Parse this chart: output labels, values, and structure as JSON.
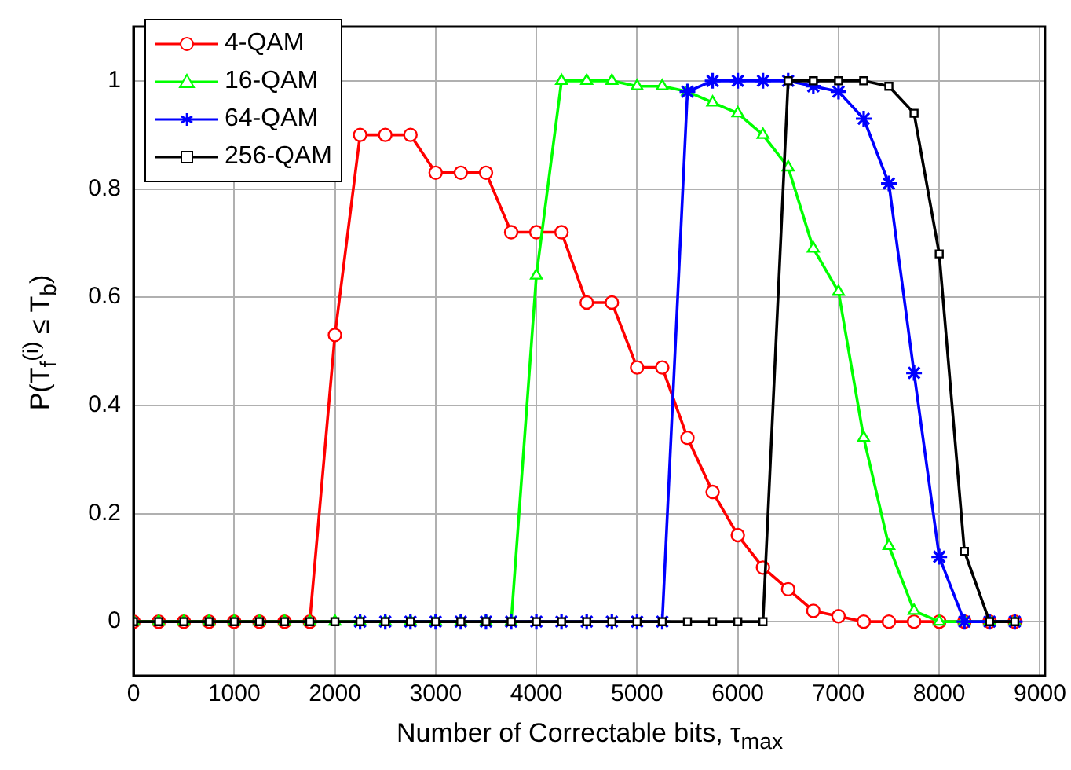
{
  "chart_data": {
    "type": "line",
    "xlabel": "Number of Correctable bits, τ$_{max}$",
    "ylabel": "P(T$_{f}$$^{(i)}$ ≤ T$_{b}$)",
    "x": [
      0,
      250,
      500,
      750,
      1000,
      1250,
      1500,
      1750,
      2000,
      2250,
      2500,
      2750,
      3000,
      3250,
      3500,
      3750,
      4000,
      4250,
      4500,
      4750,
      5000,
      5250,
      5500,
      5750,
      6000,
      6250,
      6500,
      6750,
      7000,
      7250,
      7500,
      7750,
      8000,
      8250,
      8500,
      8750
    ],
    "xlim": [
      0,
      9050
    ],
    "xticks": [
      0,
      1000,
      2000,
      3000,
      4000,
      5000,
      6000,
      7000,
      8000,
      9000
    ],
    "ylim": [
      -0.1,
      1.1
    ],
    "yticks": [
      0,
      0.2,
      0.4,
      0.6,
      0.8,
      1
    ],
    "grid": true,
    "legend": "top left",
    "line_style": "solid",
    "series": [
      {
        "name": "4-QAM",
        "color": "#ff0000",
        "marker": "circle",
        "values": [
          0,
          0,
          0,
          0,
          0,
          0,
          0,
          0,
          0.53,
          0.9,
          0.9,
          0.9,
          0.83,
          0.83,
          0.83,
          0.72,
          0.72,
          0.72,
          0.59,
          0.59,
          0.47,
          0.47,
          0.34,
          0.24,
          0.16,
          0.1,
          0.06,
          0.02,
          0.01,
          0,
          0,
          0,
          0,
          0,
          0,
          0
        ]
      },
      {
        "name": "16-QAM",
        "color": "#00ff00",
        "marker": "triangle",
        "values": [
          0,
          0,
          0,
          0,
          0,
          0,
          0,
          0,
          0,
          0,
          0,
          0,
          0,
          0,
          0,
          0,
          0.64,
          1,
          1,
          1,
          0.99,
          0.99,
          0.98,
          0.96,
          0.94,
          0.9,
          0.84,
          0.69,
          0.61,
          0.34,
          0.14,
          0.02,
          0,
          0,
          0,
          0
        ]
      },
      {
        "name": "64-QAM",
        "color": "#0000ff",
        "marker": "cross",
        "values": [
          null,
          null,
          null,
          null,
          null,
          null,
          null,
          null,
          null,
          0,
          0,
          0,
          0,
          0,
          0,
          0,
          0,
          0,
          0,
          0,
          0,
          0,
          0.98,
          1,
          1,
          1,
          1,
          0.99,
          0.98,
          0.93,
          0.81,
          0.46,
          0.12,
          0,
          0,
          0
        ]
      },
      {
        "name": "256-QAM",
        "color": "#000000",
        "marker": "square",
        "values": [
          0,
          0,
          0,
          0,
          0,
          0,
          0,
          0,
          0,
          0,
          0,
          0,
          0,
          0,
          0,
          0,
          0,
          0,
          0,
          0,
          0,
          0,
          0,
          0,
          0,
          0,
          1,
          1,
          1,
          1,
          0.99,
          0.94,
          0.68,
          0.13,
          0,
          0
        ]
      }
    ]
  }
}
